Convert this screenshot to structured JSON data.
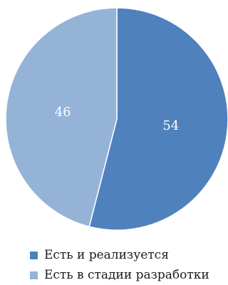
{
  "chart_data": {
    "type": "pie",
    "slices": [
      {
        "label": "Есть и реализуется",
        "value": 54,
        "color": "#4F81BD"
      },
      {
        "label": "Есть в стадии разработки",
        "value": 46,
        "color": "#95B3D7"
      }
    ],
    "start_angle_deg": 0,
    "direction": "clockwise",
    "legend_position": "bottom",
    "data_label_color": "#ffffff"
  }
}
